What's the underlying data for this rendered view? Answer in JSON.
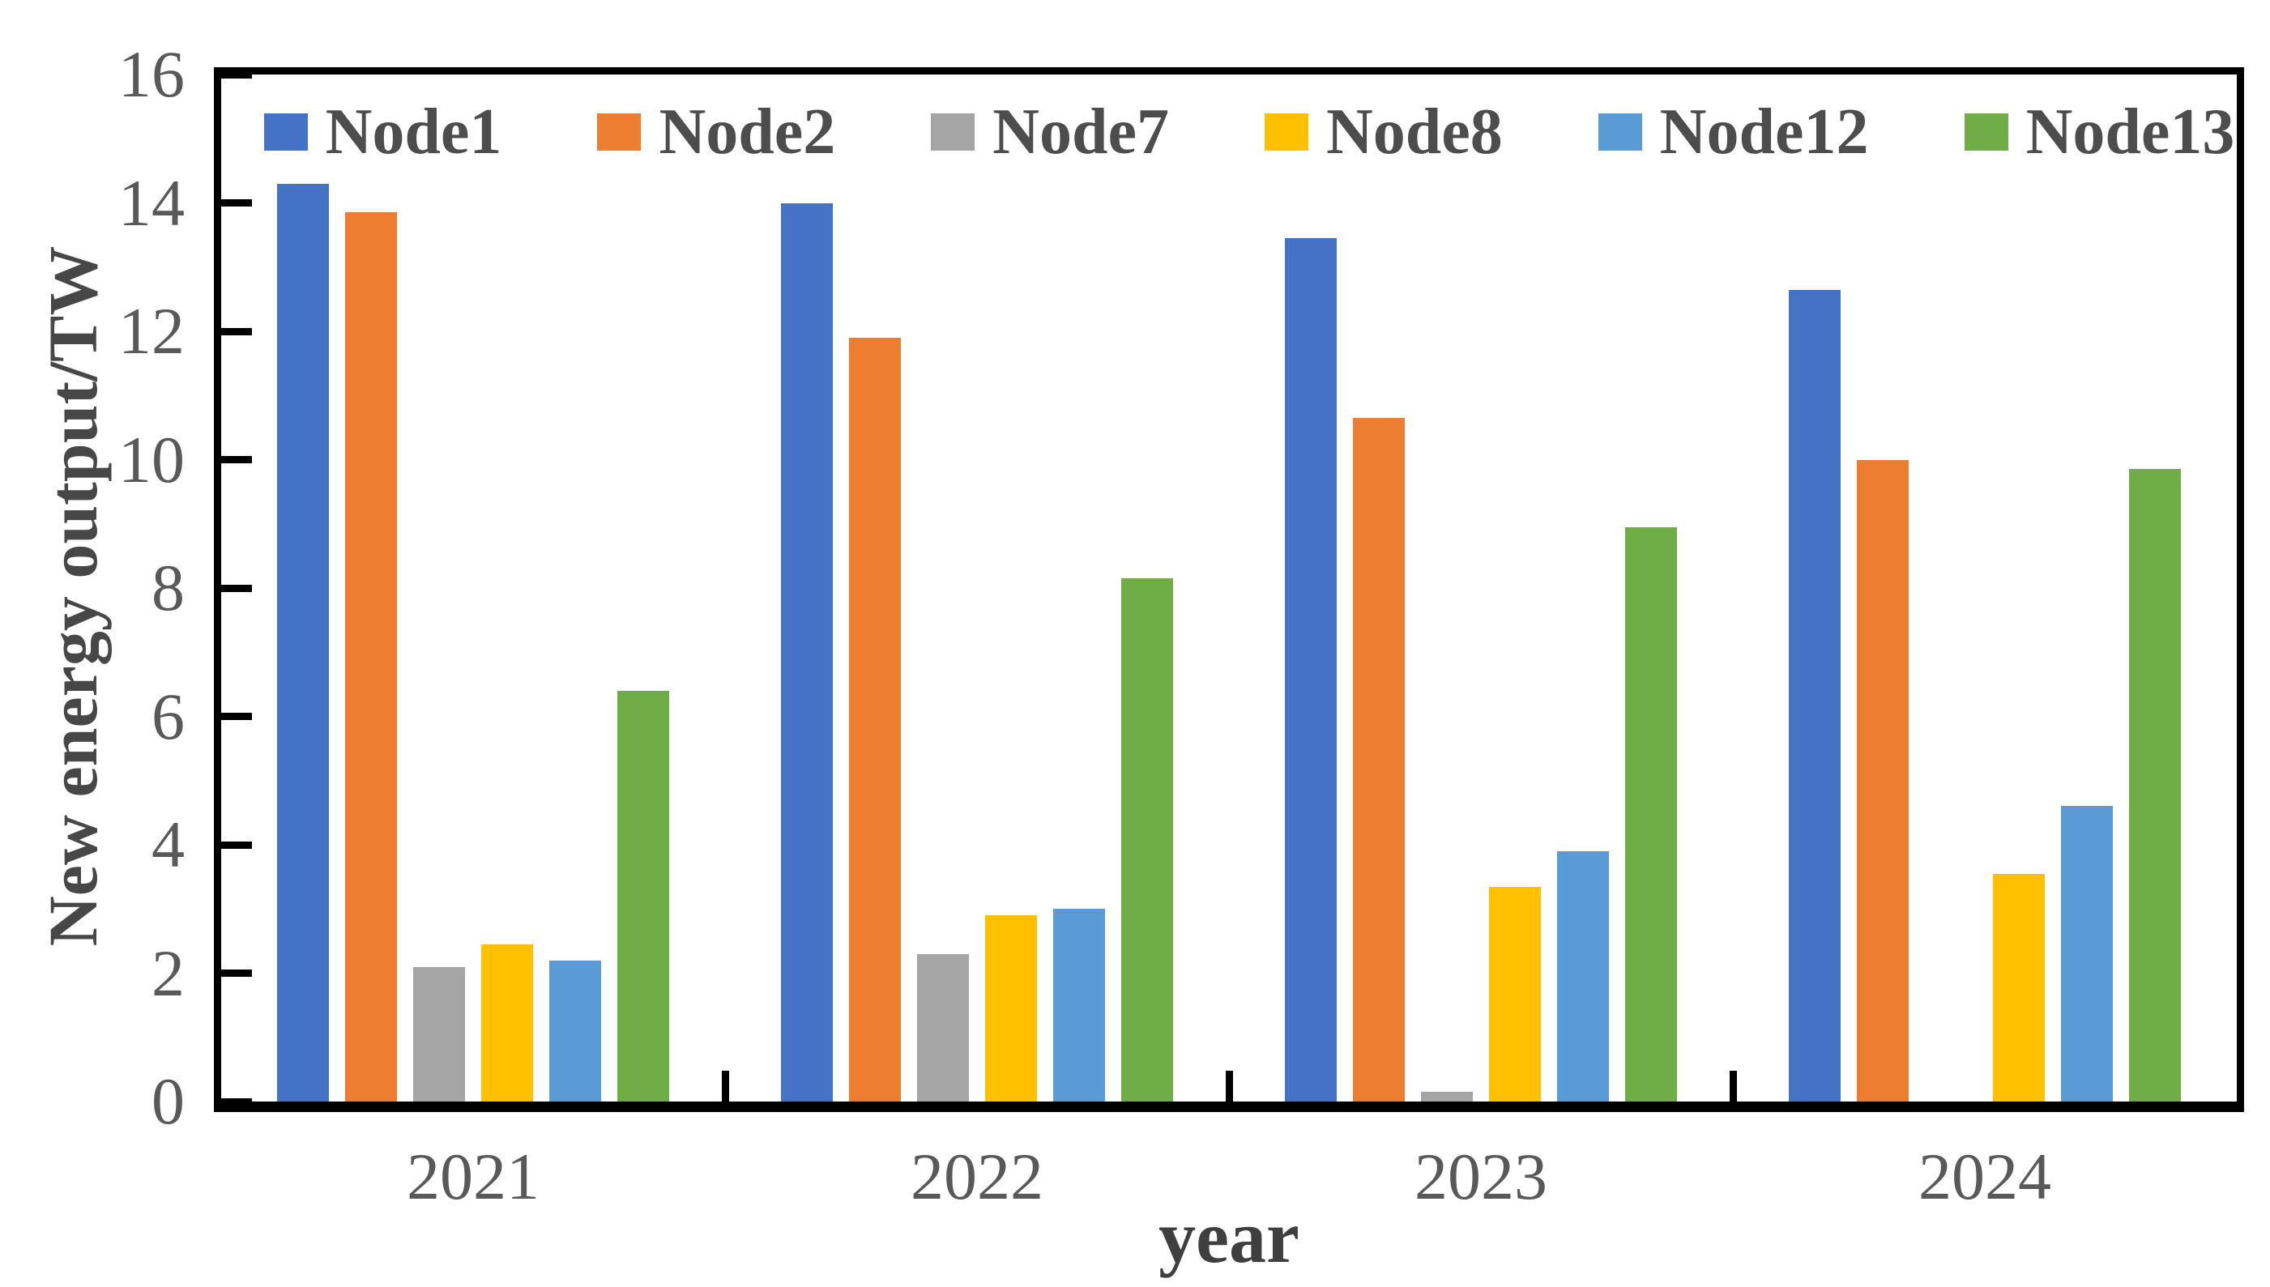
{
  "chart_data": {
    "type": "bar",
    "title": "",
    "xlabel": "year",
    "ylabel": "New energy output/TW",
    "categories": [
      "2021",
      "2022",
      "2023",
      "2024"
    ],
    "series": [
      {
        "name": "Node1",
        "color": "#4472C4",
        "values": [
          14.3,
          14.0,
          13.45,
          12.65
        ]
      },
      {
        "name": "Node2",
        "color": "#ED7D31",
        "values": [
          13.85,
          11.9,
          10.65,
          10.0
        ]
      },
      {
        "name": "Node7",
        "color": "#A5A5A5",
        "values": [
          2.1,
          2.3,
          0.15,
          0
        ]
      },
      {
        "name": "Node8",
        "color": "#FFC000",
        "values": [
          2.45,
          2.9,
          3.35,
          3.55
        ]
      },
      {
        "name": "Node12",
        "color": "#5B9BD5",
        "values": [
          2.2,
          3.0,
          3.9,
          4.6
        ]
      },
      {
        "name": "Node13",
        "color": "#70AD47",
        "values": [
          6.4,
          8.15,
          8.95,
          9.85
        ]
      }
    ],
    "ylim": [
      0,
      16
    ],
    "ytick_step": 2,
    "legend_position": "top-inside",
    "grid": false,
    "axis_color": "#000000",
    "tick_direction": "inside"
  }
}
